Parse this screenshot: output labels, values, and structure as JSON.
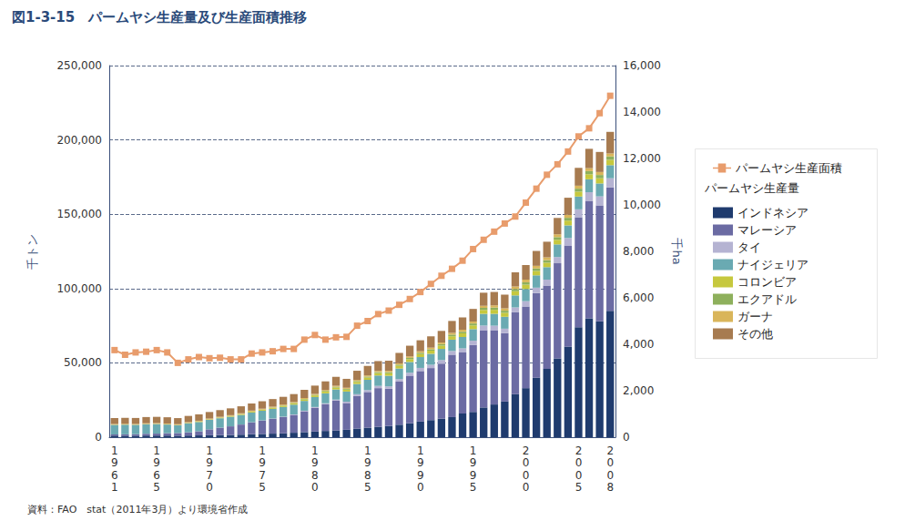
{
  "chart_data": {
    "type": "bar",
    "title": "図1-3-15　パームヤシ生産量及び生産面積推移",
    "source": "資料：FAO　stat（2011年3月）より環境省作成",
    "y_label": "千トン",
    "y2_label": "千ha",
    "legend_subtitle": "パームヤシ生産量",
    "stacked": true,
    "grid": true,
    "legend": "right",
    "categories": [
      "1961",
      null,
      null,
      null,
      "1965",
      null,
      null,
      null,
      null,
      "1970",
      null,
      null,
      null,
      null,
      "1975",
      null,
      null,
      null,
      null,
      "1980",
      null,
      null,
      null,
      null,
      "1985",
      null,
      null,
      null,
      null,
      "1990",
      null,
      null,
      null,
      null,
      "1995",
      null,
      null,
      null,
      null,
      "2000",
      null,
      null,
      null,
      null,
      "2005",
      null,
      null,
      "2008"
    ],
    "ylim": [
      0,
      250000
    ],
    "yticks": [
      0,
      {
        "value": 50000,
        "label": "50,000"
      },
      {
        "value": 100000,
        "label": "100,000"
      },
      {
        "value": 150000,
        "label": "150,000"
      },
      {
        "value": 200000,
        "label": "200,000"
      },
      {
        "value": 250000,
        "label": "250,000"
      }
    ],
    "y2lim": [
      0,
      16000
    ],
    "y2ticks": [
      0,
      {
        "value": 2000,
        "label": "2,000"
      },
      {
        "value": 4000,
        "label": "4,000"
      },
      {
        "value": 6000,
        "label": "6,000"
      },
      {
        "value": 8000,
        "label": "8,000"
      },
      {
        "value": 10000,
        "label": "10,000"
      },
      {
        "value": 12000,
        "label": "12,000"
      },
      {
        "value": 14000,
        "label": "14,000"
      },
      {
        "value": 16000,
        "label": "16,000"
      }
    ],
    "series": [
      {
        "name": "パームヤシ生産面積",
        "type": "line",
        "axis": "y2",
        "color": "#e89c6c",
        "marker": "square",
        "values": [
          3750,
          3550,
          3650,
          3680,
          3750,
          3650,
          3200,
          3350,
          3450,
          3400,
          3420,
          3350,
          3350,
          3600,
          3650,
          3700,
          3800,
          3800,
          4200,
          4400,
          4200,
          4300,
          4320,
          4800,
          5000,
          5300,
          5450,
          5700,
          5950,
          6250,
          6600,
          6950,
          7250,
          7600,
          8100,
          8500,
          8850,
          9200,
          9500,
          10100,
          10700,
          11300,
          11750,
          12300,
          12950,
          13300,
          13950,
          14700
        ]
      },
      {
        "name": "インドネシア",
        "type": "bar",
        "color": "#1f3b6e",
        "values": [
          1000,
          1000,
          1000,
          1100,
          1100,
          1100,
          1000,
          1100,
          1200,
          1300,
          1400,
          1500,
          1700,
          2000,
          2200,
          2400,
          2600,
          3000,
          3400,
          3800,
          4200,
          4600,
          5000,
          5800,
          6400,
          7000,
          7600,
          8400,
          9400,
          10500,
          11500,
          12500,
          13500,
          16000,
          17000,
          20000,
          22000,
          24000,
          29000,
          33000,
          40000,
          46000,
          53000,
          61000,
          74000,
          80000,
          78000,
          85000
        ]
      },
      {
        "name": "マレーシア",
        "type": "bar",
        "color": "#6b6ba3",
        "values": [
          800,
          900,
          1000,
          1200,
          1300,
          1600,
          1800,
          2200,
          2800,
          4000,
          5000,
          5800,
          6800,
          8000,
          9000,
          10000,
          11000,
          12000,
          14000,
          16000,
          18000,
          20000,
          18000,
          22000,
          24000,
          26000,
          25000,
          29000,
          32000,
          34000,
          35000,
          37000,
          42000,
          41000,
          45000,
          52000,
          50000,
          46000,
          55000,
          55000,
          57000,
          56000,
          64000,
          68000,
          74000,
          79000,
          78000,
          83000
        ]
      },
      {
        "name": "タイ",
        "type": "bar",
        "color": "#b5b3d2",
        "values": [
          10,
          10,
          10,
          10,
          10,
          10,
          10,
          20,
          20,
          30,
          40,
          50,
          60,
          80,
          100,
          150,
          200,
          300,
          400,
          500,
          600,
          700,
          900,
          1100,
          1300,
          1500,
          1600,
          1700,
          2000,
          2100,
          2200,
          2400,
          2500,
          2700,
          2900,
          3100,
          3000,
          3000,
          3300,
          3500,
          3600,
          4000,
          4200,
          5000,
          5300,
          5800,
          6000,
          6200
        ]
      },
      {
        "name": "ナイジェリア",
        "type": "bar",
        "color": "#6aaab2",
        "values": [
          6500,
          6500,
          6300,
          6400,
          6400,
          5800,
          5200,
          6000,
          6200,
          6300,
          6300,
          6400,
          6400,
          6500,
          6500,
          6500,
          6500,
          6600,
          6600,
          6700,
          6700,
          6800,
          6800,
          6900,
          6900,
          7000,
          7100,
          7100,
          7200,
          7300,
          7400,
          7500,
          7600,
          7700,
          7800,
          7900,
          8000,
          8000,
          8100,
          8200,
          8300,
          8400,
          8500,
          8500,
          8600,
          8700,
          8700,
          8800
        ]
      },
      {
        "name": "コロンビア",
        "type": "bar",
        "color": "#c6c83e",
        "values": [
          100,
          100,
          120,
          140,
          160,
          180,
          200,
          250,
          300,
          350,
          400,
          450,
          500,
          550,
          600,
          700,
          800,
          900,
          1000,
          1100,
          1200,
          1300,
          1300,
          1400,
          1500,
          1600,
          1700,
          1800,
          1900,
          2000,
          2100,
          2200,
          2300,
          2400,
          2500,
          2600,
          2700,
          2700,
          2800,
          2900,
          2900,
          3000,
          3100,
          3200,
          3300,
          3400,
          3500,
          3600
        ]
      },
      {
        "name": "エクアドル",
        "type": "bar",
        "color": "#8eb05c",
        "values": [
          0,
          0,
          0,
          0,
          10,
          20,
          30,
          40,
          50,
          60,
          80,
          100,
          120,
          150,
          180,
          200,
          250,
          300,
          350,
          400,
          450,
          500,
          550,
          600,
          650,
          700,
          750,
          800,
          850,
          900,
          950,
          1000,
          1100,
          1200,
          1300,
          1400,
          1500,
          1400,
          1500,
          1600,
          1700,
          1700,
          1800,
          1900,
          2000,
          2100,
          2200,
          2300
        ]
      },
      {
        "name": "ガーナ",
        "type": "bar",
        "color": "#d9b55a",
        "values": [
          500,
          500,
          500,
          500,
          500,
          500,
          500,
          500,
          500,
          500,
          500,
          500,
          500,
          600,
          600,
          600,
          600,
          600,
          600,
          600,
          600,
          700,
          700,
          700,
          800,
          800,
          900,
          900,
          1000,
          1000,
          1100,
          1100,
          1200,
          1300,
          1300,
          1400,
          1500,
          1600,
          1700,
          1800,
          1800,
          1900,
          1900,
          2000,
          2000,
          2000,
          2000,
          2000
        ]
      },
      {
        "name": "その他",
        "type": "bar",
        "color": "#a77b50",
        "values": [
          4000,
          4000,
          4000,
          4200,
          4200,
          4200,
          4100,
          4200,
          4300,
          4400,
          4500,
          4600,
          4700,
          4800,
          5000,
          5100,
          5200,
          5300,
          5500,
          5600,
          5800,
          6000,
          6000,
          6200,
          6400,
          6600,
          6800,
          7000,
          7200,
          7400,
          7600,
          7800,
          8000,
          8200,
          8500,
          8800,
          9000,
          9200,
          9500,
          9800,
          10000,
          10500,
          11000,
          11500,
          12000,
          13000,
          13500,
          14500
        ]
      }
    ]
  }
}
